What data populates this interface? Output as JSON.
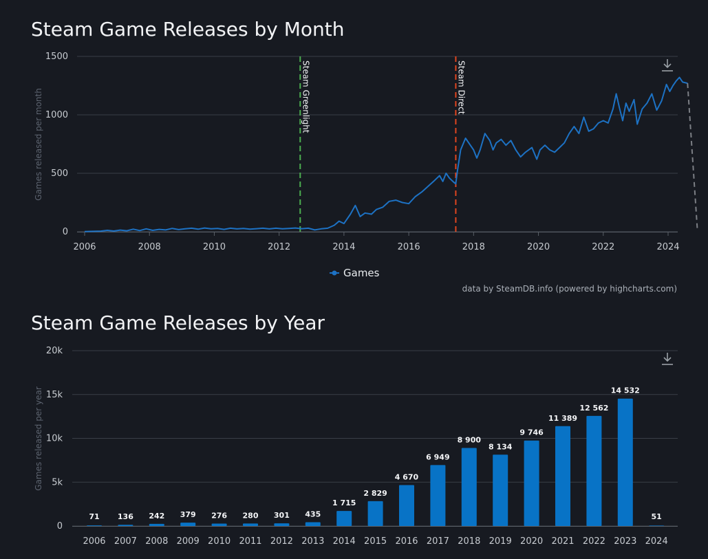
{
  "colors": {
    "background": "#171a21",
    "series": "#1d72c4",
    "bar": "#0873c6",
    "grid": "#3a3f48",
    "greenlight": "#4caf50",
    "direct": "#e0451f",
    "last_segment": "#7c7f85"
  },
  "icons": {
    "export": "download-icon"
  },
  "chart_data": [
    {
      "type": "line",
      "title": "Steam Game Releases by Month",
      "ylabel": "Games released per month",
      "xlim": [
        2006,
        2024.2
      ],
      "ylim": [
        0,
        1500
      ],
      "y_ticks": [
        "0",
        "500",
        "1000",
        "1500"
      ],
      "x_ticks": [
        "2006",
        "2008",
        "2010",
        "2012",
        "2014",
        "2016",
        "2018",
        "2020",
        "2022",
        "2024"
      ],
      "grid": true,
      "legend": {
        "position": "bottom-center",
        "entries": [
          "Games"
        ]
      },
      "credit": "data by SteamDB.info (powered by highcharts.com)",
      "plot_lines": [
        {
          "label": "Steam Greenlight",
          "x": 2012.65
        },
        {
          "label": "Steam Direct",
          "x": 2017.45
        }
      ],
      "series": [
        {
          "name": "Games",
          "points": [
            [
              2006.0,
              2
            ],
            [
              2006.5,
              5
            ],
            [
              2006.7,
              12
            ],
            [
              2006.9,
              6
            ],
            [
              2007.1,
              14
            ],
            [
              2007.3,
              8
            ],
            [
              2007.5,
              22
            ],
            [
              2007.7,
              10
            ],
            [
              2007.9,
              25
            ],
            [
              2008.1,
              12
            ],
            [
              2008.3,
              20
            ],
            [
              2008.5,
              15
            ],
            [
              2008.7,
              28
            ],
            [
              2008.9,
              18
            ],
            [
              2009.1,
              25
            ],
            [
              2009.3,
              30
            ],
            [
              2009.5,
              22
            ],
            [
              2009.7,
              32
            ],
            [
              2009.9,
              25
            ],
            [
              2010.1,
              28
            ],
            [
              2010.3,
              20
            ],
            [
              2010.5,
              30
            ],
            [
              2010.7,
              24
            ],
            [
              2010.9,
              28
            ],
            [
              2011.1,
              22
            ],
            [
              2011.3,
              26
            ],
            [
              2011.5,
              30
            ],
            [
              2011.7,
              24
            ],
            [
              2011.9,
              30
            ],
            [
              2012.1,
              25
            ],
            [
              2012.3,
              28
            ],
            [
              2012.5,
              32
            ],
            [
              2012.7,
              26
            ],
            [
              2012.9,
              30
            ],
            [
              2013.1,
              15
            ],
            [
              2013.3,
              25
            ],
            [
              2013.5,
              30
            ],
            [
              2013.7,
              55
            ],
            [
              2013.85,
              90
            ],
            [
              2014.0,
              70
            ],
            [
              2014.2,
              150
            ],
            [
              2014.35,
              225
            ],
            [
              2014.5,
              130
            ],
            [
              2014.65,
              160
            ],
            [
              2014.85,
              150
            ],
            [
              2015.0,
              190
            ],
            [
              2015.2,
              210
            ],
            [
              2015.4,
              260
            ],
            [
              2015.6,
              270
            ],
            [
              2015.8,
              250
            ],
            [
              2016.0,
              240
            ],
            [
              2016.2,
              300
            ],
            [
              2016.4,
              340
            ],
            [
              2016.6,
              390
            ],
            [
              2016.8,
              440
            ],
            [
              2016.95,
              480
            ],
            [
              2017.05,
              430
            ],
            [
              2017.15,
              500
            ],
            [
              2017.25,
              460
            ],
            [
              2017.4,
              420
            ],
            [
              2017.45,
              410
            ],
            [
              2017.5,
              520
            ],
            [
              2017.6,
              700
            ],
            [
              2017.75,
              800
            ],
            [
              2017.9,
              740
            ],
            [
              2018.0,
              700
            ],
            [
              2018.1,
              630
            ],
            [
              2018.2,
              700
            ],
            [
              2018.35,
              840
            ],
            [
              2018.5,
              780
            ],
            [
              2018.6,
              700
            ],
            [
              2018.7,
              760
            ],
            [
              2018.85,
              790
            ],
            [
              2019.0,
              740
            ],
            [
              2019.15,
              780
            ],
            [
              2019.3,
              700
            ],
            [
              2019.45,
              640
            ],
            [
              2019.6,
              680
            ],
            [
              2019.8,
              720
            ],
            [
              2019.95,
              620
            ],
            [
              2020.05,
              700
            ],
            [
              2020.2,
              740
            ],
            [
              2020.35,
              700
            ],
            [
              2020.5,
              680
            ],
            [
              2020.65,
              720
            ],
            [
              2020.8,
              760
            ],
            [
              2020.95,
              840
            ],
            [
              2021.1,
              900
            ],
            [
              2021.25,
              840
            ],
            [
              2021.4,
              980
            ],
            [
              2021.55,
              860
            ],
            [
              2021.7,
              880
            ],
            [
              2021.85,
              930
            ],
            [
              2022.0,
              950
            ],
            [
              2022.15,
              930
            ],
            [
              2022.3,
              1050
            ],
            [
              2022.4,
              1180
            ],
            [
              2022.5,
              1060
            ],
            [
              2022.6,
              950
            ],
            [
              2022.7,
              1100
            ],
            [
              2022.8,
              1030
            ],
            [
              2022.95,
              1130
            ],
            [
              2023.05,
              920
            ],
            [
              2023.2,
              1050
            ],
            [
              2023.35,
              1100
            ],
            [
              2023.5,
              1180
            ],
            [
              2023.65,
              1040
            ],
            [
              2023.8,
              1120
            ],
            [
              2023.95,
              1260
            ],
            [
              2024.05,
              1200
            ],
            [
              2024.15,
              1250
            ],
            [
              2024.25,
              1290
            ],
            [
              2024.35,
              1320
            ],
            [
              2024.45,
              1280
            ],
            [
              2024.6,
              1270
            ]
          ]
        }
      ],
      "last_point": [
        2024.9,
        30
      ]
    },
    {
      "type": "bar",
      "title": "Steam Game Releases by Year",
      "ylabel": "Games released per year",
      "ylim": [
        0,
        20000
      ],
      "y_ticks": [
        "0",
        "5k",
        "10k",
        "15k",
        "20k"
      ],
      "grid": true,
      "categories": [
        "2006",
        "2007",
        "2008",
        "2009",
        "2010",
        "2011",
        "2012",
        "2013",
        "2014",
        "2015",
        "2016",
        "2017",
        "2018",
        "2019",
        "2020",
        "2021",
        "2022",
        "2023",
        "2024"
      ],
      "values": [
        71,
        136,
        242,
        379,
        276,
        280,
        301,
        435,
        1715,
        2829,
        4670,
        6949,
        8900,
        8134,
        9746,
        11389,
        12562,
        14532,
        51
      ],
      "data_labels": [
        "71",
        "136",
        "242",
        "379",
        "276",
        "280",
        "301",
        "435",
        "1 715",
        "2 829",
        "4 670",
        "6 949",
        "8 900",
        "8 134",
        "9 746",
        "11 389",
        "12 562",
        "14 532",
        "51"
      ]
    }
  ]
}
